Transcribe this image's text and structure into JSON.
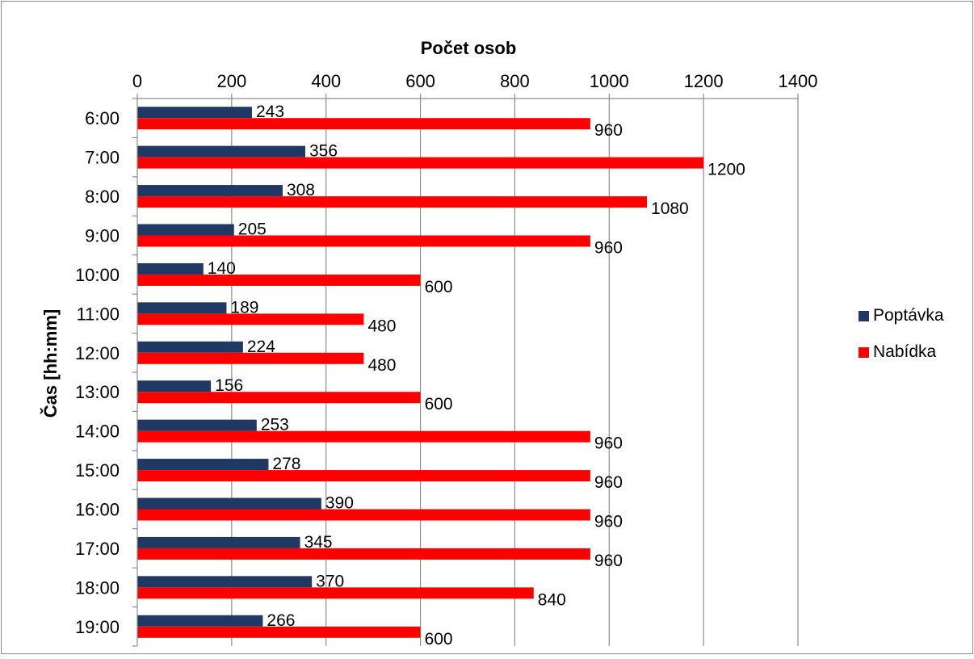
{
  "chart_data": {
    "type": "bar",
    "orientation": "horizontal",
    "categories": [
      "6:00",
      "7:00",
      "8:00",
      "9:00",
      "10:00",
      "11:00",
      "12:00",
      "13:00",
      "14:00",
      "15:00",
      "16:00",
      "17:00",
      "18:00",
      "19:00"
    ],
    "series": [
      {
        "name": "Poptávka",
        "color": "#1F3864",
        "values": [
          243,
          356,
          308,
          205,
          140,
          189,
          224,
          156,
          253,
          278,
          390,
          345,
          370,
          266
        ]
      },
      {
        "name": "Nabídka",
        "color": "#FF0000",
        "values": [
          960,
          1200,
          1080,
          960,
          600,
          480,
          480,
          600,
          960,
          960,
          960,
          960,
          840,
          600
        ]
      }
    ],
    "xlabel": "Počet osob",
    "ylabel": "Čas [hh:mm]",
    "xlim": [
      0,
      1400
    ],
    "xticks": [
      0,
      200,
      400,
      600,
      800,
      1000,
      1200,
      1400
    ],
    "x_axis_position": "top",
    "grid": true,
    "data_labels": true,
    "legend_position": "right"
  }
}
